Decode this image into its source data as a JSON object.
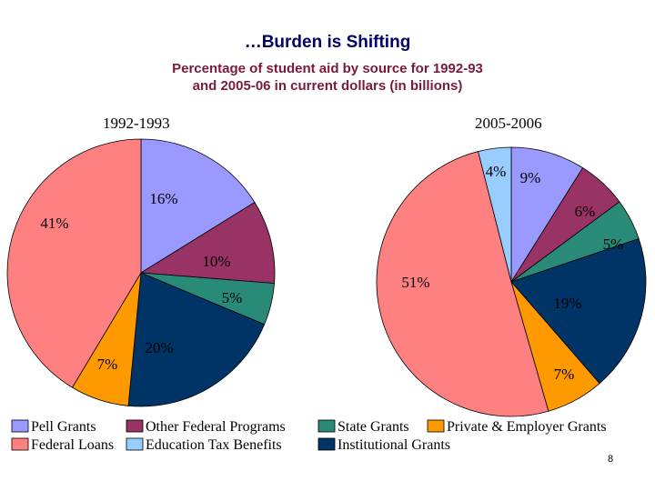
{
  "title": "…Burden is Shifting",
  "subtitle_line1": "Percentage of student aid by source for 1992-93",
  "subtitle_line2": "and 2005-06 in current dollars (in billions)",
  "page_number": "8",
  "chart_data": [
    {
      "type": "pie",
      "title": "1992-1993",
      "slices": [
        {
          "label": "Pell Grants",
          "value": 16,
          "text": "16%",
          "color": "#9999ff"
        },
        {
          "label": "Other Federal Programs",
          "value": 10,
          "text": "10%",
          "color": "#993366"
        },
        {
          "label": "State Grants",
          "value": 5,
          "text": "5%",
          "color": "#2a8a78"
        },
        {
          "label": "Institutional Grants",
          "value": 20,
          "text": "20%",
          "color": "#003366"
        },
        {
          "label": "Private & Employer Grants",
          "value": 7,
          "text": "7%",
          "color": "#ff9900"
        },
        {
          "label": "Federal Loans",
          "value": 41,
          "text": "41%",
          "color": "#ff8080"
        }
      ]
    },
    {
      "type": "pie",
      "title": "2005-2006",
      "slices": [
        {
          "label": "Pell Grants",
          "value": 9,
          "text": "9%",
          "color": "#9999ff"
        },
        {
          "label": "Other Federal Programs",
          "value": 6,
          "text": "6%",
          "color": "#993366"
        },
        {
          "label": "State Grants",
          "value": 5,
          "text": "5%",
          "color": "#2a8a78"
        },
        {
          "label": "Institutional Grants",
          "value": 19,
          "text": "19%",
          "color": "#003366"
        },
        {
          "label": "Private & Employer Grants",
          "value": 7,
          "text": "7%",
          "color": "#ff9900"
        },
        {
          "label": "Federal Loans",
          "value": 51,
          "text": "51%",
          "color": "#ff8080"
        },
        {
          "label": "Education Tax Benefits",
          "value": 4,
          "text": "4%",
          "color": "#99ccff"
        }
      ]
    }
  ],
  "legend": [
    {
      "label": "Pell Grants",
      "color": "#9999ff"
    },
    {
      "label": "Other Federal Programs",
      "color": "#993366"
    },
    {
      "label": "State Grants",
      "color": "#2a8a78"
    },
    {
      "label": "Private & Employer Grants",
      "color": "#ff9900"
    },
    {
      "label": "Federal Loans",
      "color": "#ff8080"
    },
    {
      "label": "Education Tax Benefits",
      "color": "#99ccff"
    },
    {
      "label": "Institutional Grants",
      "color": "#003366"
    }
  ]
}
